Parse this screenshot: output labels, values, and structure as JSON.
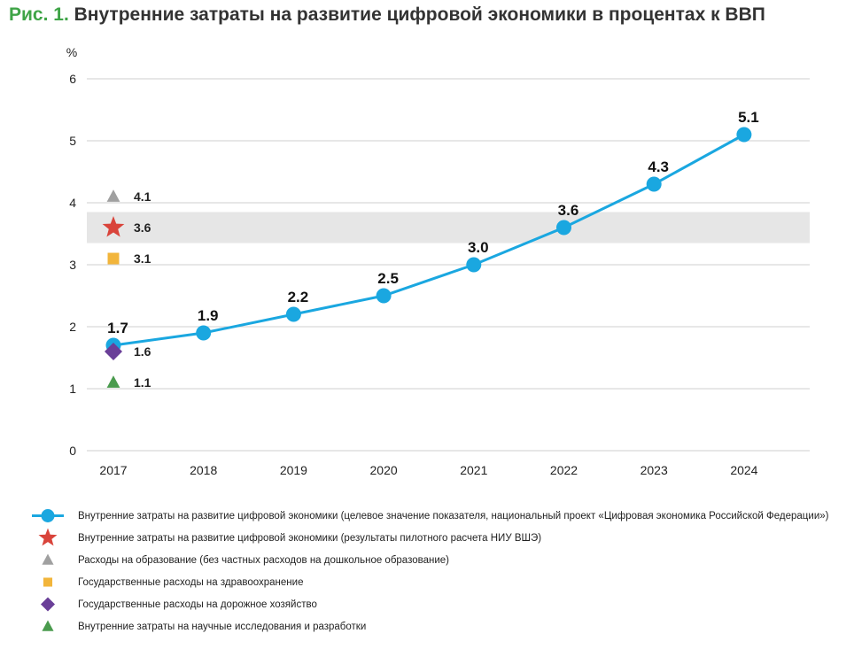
{
  "title": {
    "prefix": "Рис. 1.",
    "text": "Внутренние затраты на развитие цифровой экономики в процентах к ВВП"
  },
  "colors": {
    "line": "#1aa7e0",
    "star": "#d9443b",
    "gray_triangle": "#a0a0a0",
    "square": "#f2b53b",
    "diamond": "#6a3f98",
    "green_triangle": "#4a9b4e",
    "band": "#e6e6e6",
    "title_accent": "#3fa447"
  },
  "chart_data": {
    "type": "line",
    "ylabel": "%",
    "ylim": [
      0,
      6
    ],
    "yticks": [
      "0",
      "1",
      "2",
      "3",
      "4",
      "5",
      "6"
    ],
    "categories": [
      "2017",
      "2018",
      "2019",
      "2020",
      "2021",
      "2022",
      "2023",
      "2024"
    ],
    "series": [
      {
        "name": "Внутренние затраты на развитие цифровой экономики (целевое значение показателя, национальный проект «Цифровая экономика Российской Федерации»)",
        "values": [
          1.7,
          1.9,
          2.2,
          2.5,
          3.0,
          3.6,
          4.3,
          5.1
        ],
        "labels": [
          "1.7",
          "1.9",
          "2.2",
          "2.5",
          "3.0",
          "3.6",
          "4.3",
          "5.1"
        ]
      }
    ],
    "points_2017": [
      {
        "name": "Внутренние затраты на развитие цифровой экономики (результаты пилотного расчета НИУ ВШЭ)",
        "marker": "star",
        "value": 3.6,
        "label": "3.6"
      },
      {
        "name": "Расходы на образование (без частных расходов на дошкольное образование)",
        "marker": "gray-triangle",
        "value": 4.1,
        "label": "4.1"
      },
      {
        "name": "Государственные расходы на здравоохранение",
        "marker": "square",
        "value": 3.1,
        "label": "3.1"
      },
      {
        "name": "Государственные расходы на дорожное хозяйство",
        "marker": "diamond",
        "value": 1.6,
        "label": "1.6"
      },
      {
        "name": "Внутренние затраты на научные исследования и разработки",
        "marker": "green-triangle",
        "value": 1.1,
        "label": "1.1"
      }
    ],
    "highlight_band": [
      3.35,
      3.85
    ],
    "grid": true
  },
  "legend": [
    {
      "marker": "line",
      "label": "Внутренние затраты на развитие цифровой экономики (целевое значение показателя, национальный проект «Цифровая экономика Российской Федерации»)"
    },
    {
      "marker": "star",
      "label": "Внутренние затраты на развитие цифровой экономики (результаты пилотного расчета НИУ ВШЭ)"
    },
    {
      "marker": "gray-triangle",
      "label": "Расходы на образование (без частных расходов на дошкольное образование)"
    },
    {
      "marker": "square",
      "label": "Государственные расходы на здравоохранение"
    },
    {
      "marker": "diamond",
      "label": "Государственные расходы на дорожное хозяйство"
    },
    {
      "marker": "green-triangle",
      "label": "Внутренние затраты на научные исследования и разработки"
    }
  ]
}
